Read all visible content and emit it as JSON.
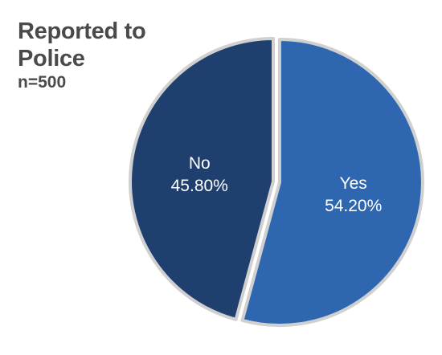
{
  "chart_data": {
    "type": "pie",
    "title": "Reported to Police",
    "subtitle": "n=500",
    "slices": [
      {
        "label": "Yes",
        "value": 54.2,
        "display_value": "54.20%",
        "color": "#2e67b0",
        "exploded": true
      },
      {
        "label": "No",
        "value": 45.8,
        "display_value": "45.80%",
        "color": "#1f3f6e",
        "exploded": false
      }
    ],
    "slice_border_color": "#d0d0d0",
    "start_angle": "12 o'clock",
    "direction": "clockwise"
  }
}
